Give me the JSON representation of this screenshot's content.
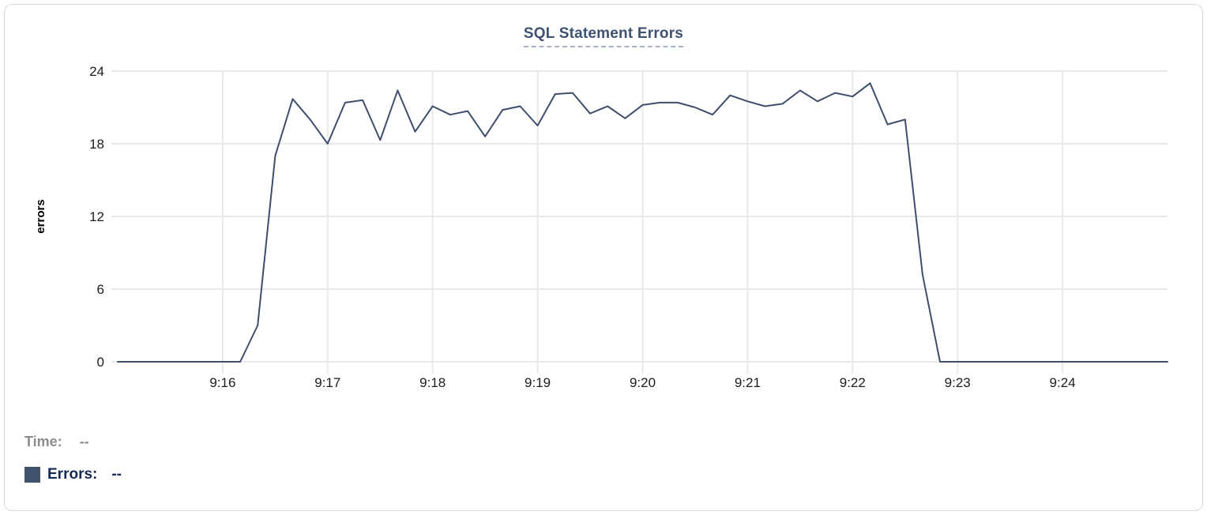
{
  "chart": {
    "title": "SQL Statement Errors"
  },
  "chart_data": {
    "type": "line",
    "title": "SQL Statement Errors",
    "xlabel": "",
    "ylabel": "errors",
    "ylim": [
      0,
      24
    ],
    "yticks": [
      0,
      6,
      12,
      18,
      24
    ],
    "xticks": [
      "9:16",
      "9:17",
      "9:18",
      "9:19",
      "9:20",
      "9:21",
      "9:22",
      "9:23",
      "9:24"
    ],
    "x_start_time": "9:15:00",
    "x_end_time": "9:25:00",
    "x_step_seconds": 10,
    "grid": true,
    "legend_position": "bottom-left",
    "line_color": "#3e4e6c",
    "grid_color": "#e9e9e9",
    "tick_color": "#1c1c1c",
    "series": [
      {
        "name": "Errors",
        "values": [
          0,
          0,
          0,
          0,
          0,
          0,
          0,
          0,
          3,
          17,
          21.7,
          20,
          18,
          21.4,
          21.6,
          18.3,
          22.4,
          19,
          21.1,
          20.4,
          20.7,
          18.6,
          20.8,
          21.1,
          19.5,
          22.1,
          22.2,
          20.5,
          21.1,
          20.1,
          21.2,
          21.4,
          21.4,
          21,
          20.4,
          22,
          21.5,
          21.1,
          21.3,
          22.4,
          21.5,
          22.2,
          21.9,
          23,
          19.6,
          20,
          7.2,
          0,
          0,
          0,
          0,
          0,
          0,
          0,
          0,
          0,
          0,
          0,
          0,
          0,
          0
        ]
      }
    ]
  },
  "tooltip": {
    "time_label": "Time:",
    "time_value": "--",
    "errors_label": "Errors:",
    "errors_value": "--",
    "swatch_color": "#42526f"
  }
}
